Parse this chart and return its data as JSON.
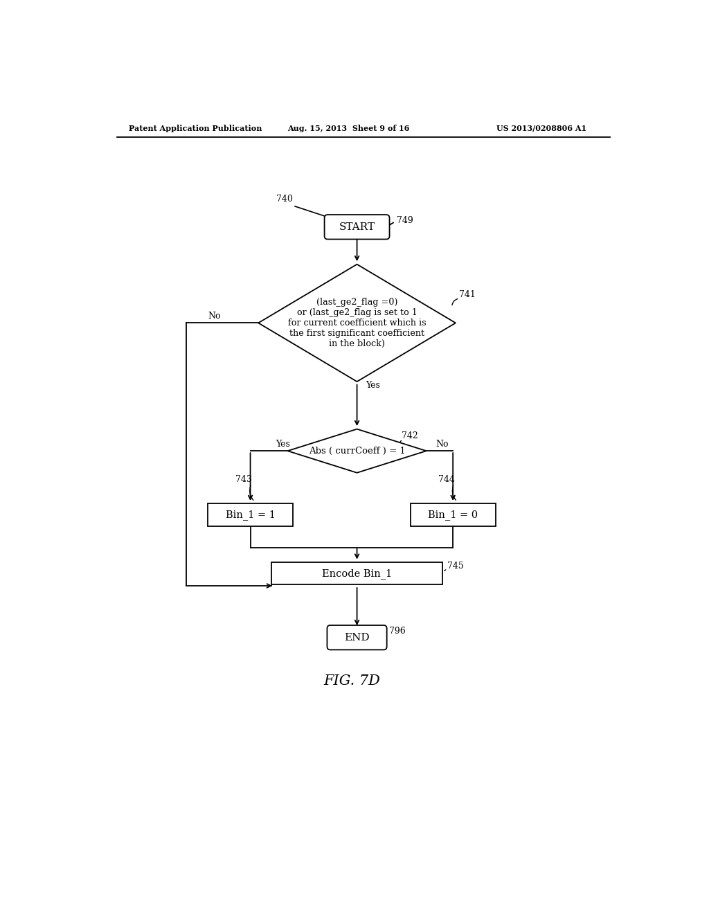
{
  "bg_color": "#ffffff",
  "header_left": "Patent Application Publication",
  "header_center": "Aug. 15, 2013  Sheet 9 of 16",
  "header_right": "US 2013/0208806 A1",
  "fig_label": "FIG. 7D",
  "label_740": "740",
  "label_749": "749",
  "label_741": "741",
  "label_742": "742",
  "label_743": "743",
  "label_744": "744",
  "label_745": "745",
  "label_796": "796",
  "start_text": "START",
  "end_text": "END",
  "diamond1_text": "(last_ge2_flag =0)\nor (last_ge2_flag is set to 1\nfor current coefficient which is\nthe first significant coefficient\nin the block)",
  "diamond2_text": "Abs ( currCoeff ) = 1",
  "box_bin1_text": "Bin_1 = 1",
  "box_bin0_text": "Bin_1 = 0",
  "box_encode_text": "Encode Bin_1",
  "yes_label_d1": "Yes",
  "no_label_d1": "No",
  "yes_label_d2": "Yes",
  "no_label_d2": "No"
}
